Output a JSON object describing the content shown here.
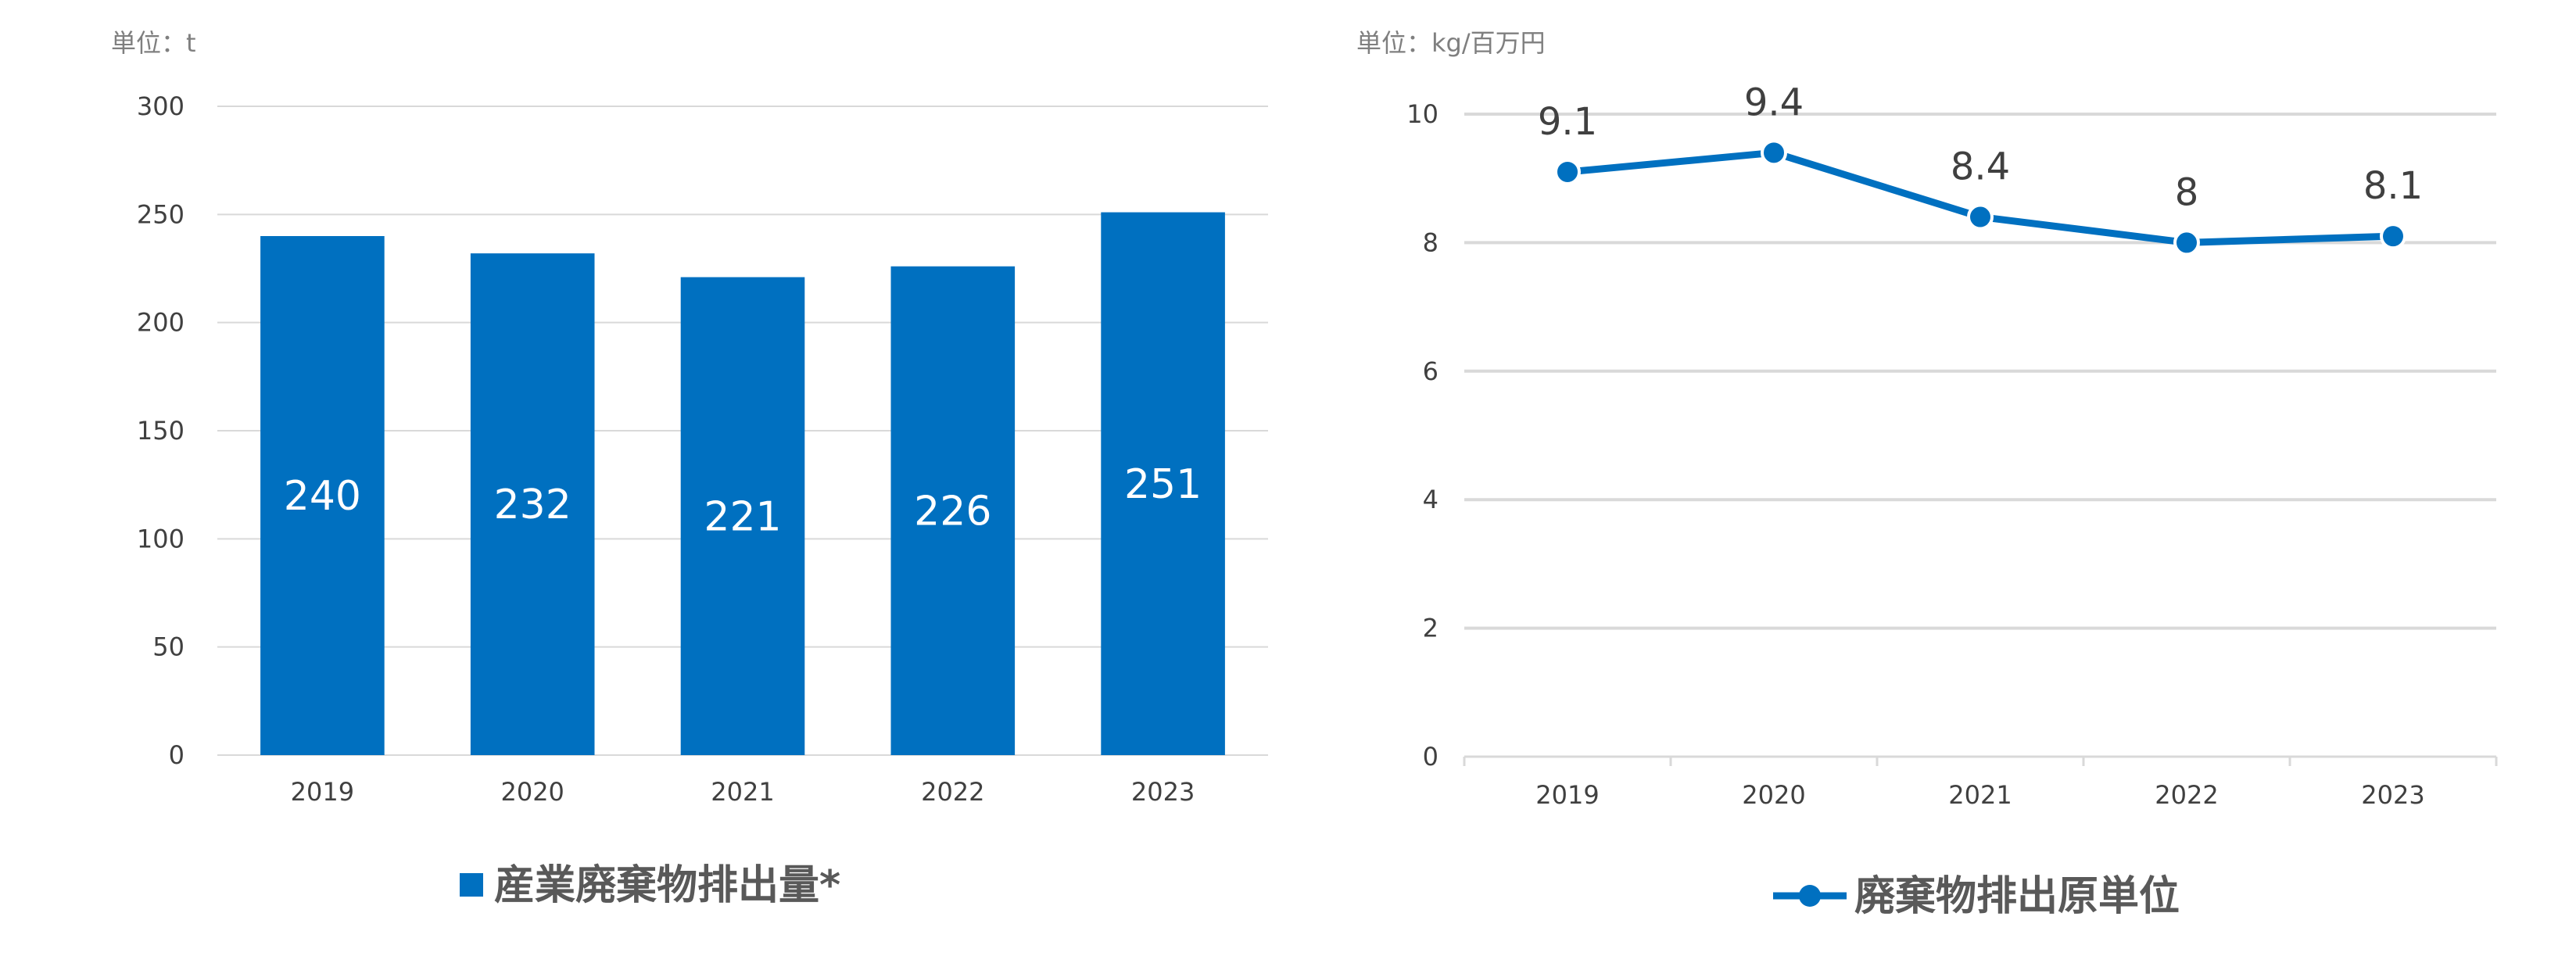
{
  "colors": {
    "series": "#0070c0",
    "grid": "#d9d9d9",
    "axis_text": "#404040",
    "unit_text": "#7f7f7f",
    "legend_text": "#595959"
  },
  "chart_data": [
    {
      "type": "bar",
      "unit_label": "単位：t",
      "categories": [
        "2019",
        "2020",
        "2021",
        "2022",
        "2023"
      ],
      "series": [
        {
          "name": "産業廃棄物排出量*",
          "values": [
            240,
            232,
            221,
            226,
            251
          ]
        }
      ],
      "ylim": [
        0,
        300
      ],
      "yticks": [
        "0",
        "50",
        "100",
        "150",
        "200",
        "250",
        "300"
      ],
      "data_labels": [
        "240",
        "232",
        "221",
        "226",
        "251"
      ],
      "grid": true,
      "legend": "bottom"
    },
    {
      "type": "line",
      "unit_label": "単位：kg/百万円",
      "categories": [
        "2019",
        "2020",
        "2021",
        "2022",
        "2023"
      ],
      "series": [
        {
          "name": "廃棄物排出原単位",
          "values": [
            9.1,
            9.4,
            8.4,
            8,
            8.1
          ]
        }
      ],
      "ylim": [
        0,
        10
      ],
      "yticks": [
        "0",
        "2",
        "4",
        "6",
        "8",
        "10"
      ],
      "data_labels": [
        "9.1",
        "9.4",
        "8.4",
        "8",
        "8.1"
      ],
      "grid": true,
      "legend": "bottom"
    }
  ]
}
